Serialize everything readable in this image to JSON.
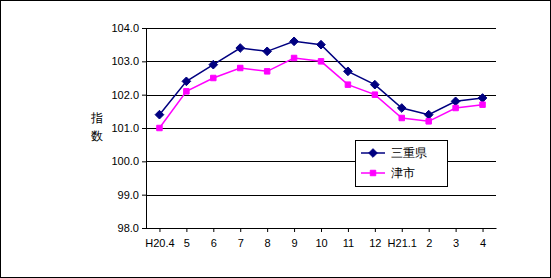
{
  "chart_data": {
    "type": "line",
    "categories": [
      "H20.4",
      "5",
      "6",
      "7",
      "8",
      "9",
      "10",
      "11",
      "12",
      "H21.1",
      "2",
      "3",
      "4"
    ],
    "y_label": "指数",
    "series": [
      {
        "name": "三重県",
        "color": "#000080",
        "marker": "diamond",
        "line_style": "solid",
        "values": [
          101.4,
          102.4,
          102.9,
          103.4,
          103.3,
          103.6,
          103.5,
          102.7,
          102.3,
          101.6,
          101.4,
          101.8,
          101.9
        ]
      },
      {
        "name": "津市",
        "color": "#ff00ff",
        "marker": "square",
        "line_style": "solid",
        "values": [
          101.0,
          102.1,
          102.5,
          102.8,
          102.7,
          103.1,
          103.0,
          102.3,
          102.0,
          101.3,
          101.2,
          101.6,
          101.7
        ]
      }
    ],
    "ylim": [
      98,
      104
    ],
    "yticks": [
      {
        "value": 98,
        "label": "98.0"
      },
      {
        "value": 99,
        "label": "99.0"
      },
      {
        "value": 100,
        "label": "100.0"
      },
      {
        "value": 101,
        "label": "101.0"
      },
      {
        "value": 102,
        "label": "102.0"
      },
      {
        "value": 103,
        "label": "103.0"
      },
      {
        "value": 104,
        "label": "104.0"
      }
    ],
    "grid": true,
    "legend": "right"
  }
}
